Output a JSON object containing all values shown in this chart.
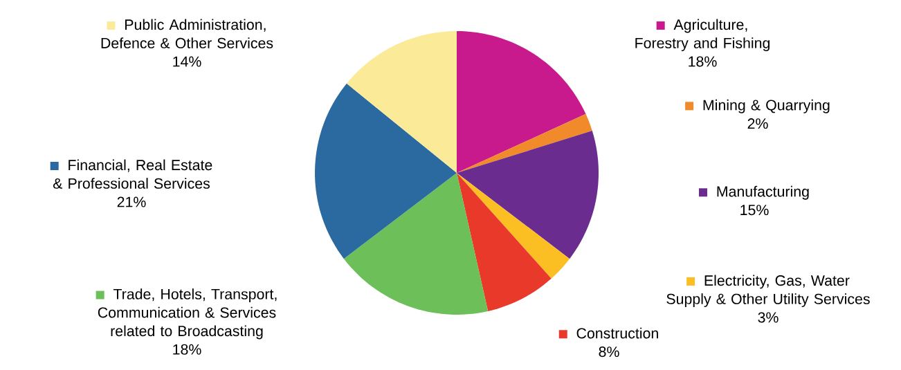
{
  "chart_data": {
    "type": "pie",
    "categories": [
      "Agriculture, Forestry and Fishing",
      "Mining & Quarrying",
      "Manufacturing",
      "Electricity, Gas, Water Supply & Other Utility Services",
      "Construction",
      "Trade, Hotels, Transport, Communication & Services related to Broadcasting",
      "Financial, Real Estate & Professional Services",
      "Public Administration, Defence & Other Services"
    ],
    "values": [
      18,
      2,
      15,
      3,
      8,
      18,
      21,
      14
    ],
    "colors": [
      "#c81a8c",
      "#f08a2a",
      "#6a2d8f",
      "#fbbf24",
      "#e8392a",
      "#6dbf5a",
      "#2a6aa0",
      "#fbeb98"
    ],
    "value_labels": [
      "18%",
      "2%",
      "15%",
      "3%",
      "8%",
      "18%",
      "21%",
      "14%"
    ],
    "legend": "right"
  }
}
